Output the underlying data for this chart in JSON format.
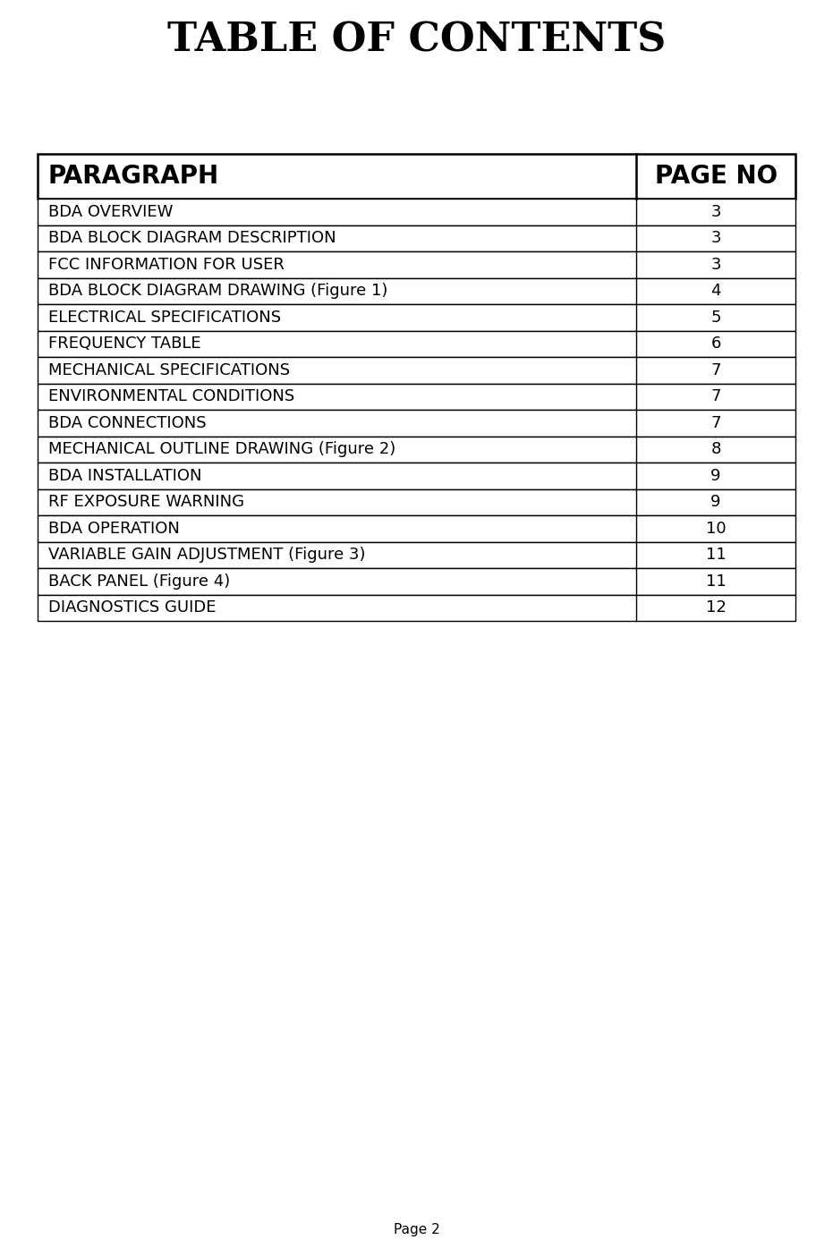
{
  "title": "TABLE OF CONTENTS",
  "header_paragraph": "PARAGRAPH",
  "header_page": "PAGE NO",
  "rows": [
    [
      "BDA OVERVIEW",
      "3"
    ],
    [
      "BDA BLOCK DIAGRAM DESCRIPTION",
      "3"
    ],
    [
      "FCC INFORMATION FOR USER",
      "3"
    ],
    [
      "BDA BLOCK DIAGRAM DRAWING (Figure 1)",
      "4"
    ],
    [
      "ELECTRICAL SPECIFICATIONS",
      "5"
    ],
    [
      "FREQUENCY TABLE",
      "6"
    ],
    [
      "MECHANICAL SPECIFICATIONS",
      "7"
    ],
    [
      "ENVIRONMENTAL CONDITIONS",
      "7"
    ],
    [
      "BDA CONNECTIONS",
      "7"
    ],
    [
      "MECHANICAL OUTLINE DRAWING (Figure 2)",
      "8"
    ],
    [
      "BDA INSTALLATION",
      "9"
    ],
    [
      "RF EXPOSURE WARNING",
      "9"
    ],
    [
      "BDA OPERATION",
      "10"
    ],
    [
      "VARIABLE GAIN ADJUSTMENT (Figure 3)",
      "11"
    ],
    [
      "BACK PANEL (Figure 4)",
      "11"
    ],
    [
      "DIAGNOSTICS GUIDE",
      "12"
    ]
  ],
  "footer": "Page 2",
  "bg_color": "#ffffff",
  "text_color": "#000000",
  "border_color": "#000000",
  "title_fontsize": 32,
  "header_fontsize": 20,
  "row_fontsize": 13,
  "footer_fontsize": 11
}
